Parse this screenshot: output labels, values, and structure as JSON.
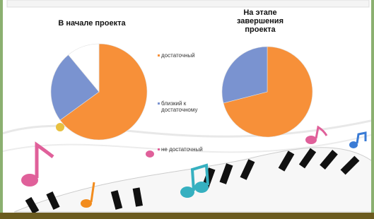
{
  "chart_data": [
    {
      "type": "pie",
      "title": "В начале проекта",
      "categories": [
        "достаточный",
        "близкий к достаточному",
        "не достаточный"
      ],
      "values": [
        65,
        24,
        11
      ],
      "colors": [
        "#f79039",
        "#7a93d0",
        "#ffffff"
      ]
    },
    {
      "type": "pie",
      "title": "На этапе завершения проекта",
      "values": [
        71,
        29
      ],
      "colors": [
        "#f79039",
        "#7a93d0"
      ]
    }
  ]
}
